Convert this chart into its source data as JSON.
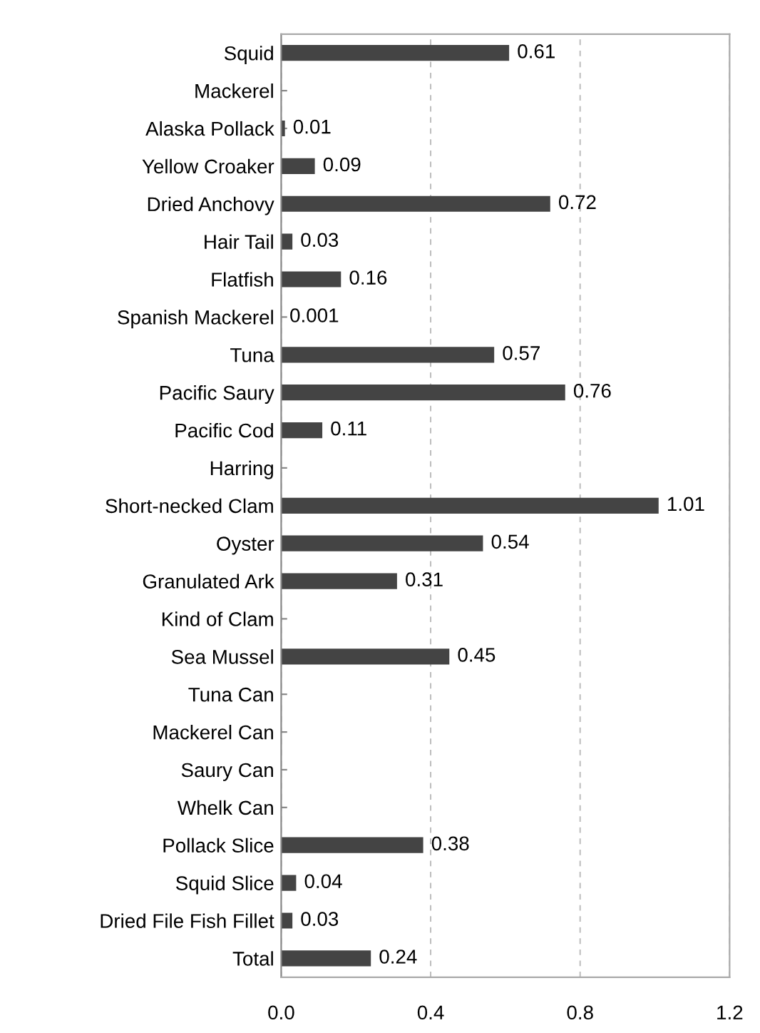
{
  "chart_data": {
    "type": "bar",
    "orientation": "horizontal",
    "categories": [
      "Squid",
      "Mackerel",
      "Alaska Pollack",
      "Yellow Croaker",
      "Dried Anchovy",
      "Hair Tail",
      "Flatfish",
      "Spanish Mackerel",
      "Tuna",
      "Pacific Saury",
      "Pacific Cod",
      "Harring",
      "Short-necked Clam",
      "Oyster",
      "Granulated Ark",
      "Kind of Clam",
      "Sea Mussel",
      "Tuna Can",
      "Mackerel Can",
      "Saury Can",
      "Whelk Can",
      "Pollack Slice",
      "Squid Slice",
      "Dried File Fish Fillet",
      "Total"
    ],
    "values": [
      0.61,
      null,
      0.01,
      0.09,
      0.72,
      0.03,
      0.16,
      0.001,
      0.57,
      0.76,
      0.11,
      null,
      1.01,
      0.54,
      0.31,
      null,
      0.45,
      null,
      null,
      null,
      null,
      0.38,
      0.04,
      0.03,
      0.24
    ],
    "color": "#444444",
    "data_labels": true,
    "grid": "x",
    "xlim": [
      0,
      1.2
    ],
    "xticks": [
      {
        "value": 0,
        "label": "0.0"
      },
      0.4,
      0.8,
      1.2
    ]
  }
}
